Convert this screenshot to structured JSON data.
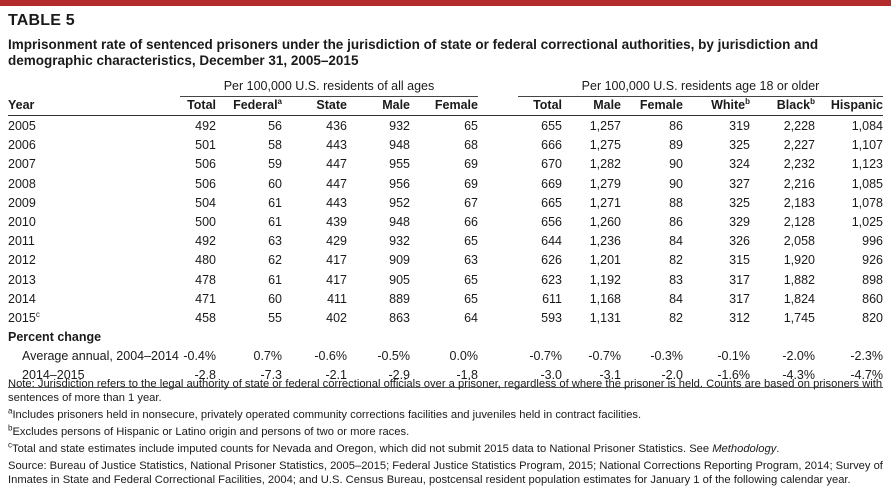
{
  "table_label": "TABLE 5",
  "title": "Imprisonment rate of sentenced prisoners under the jurisdiction of state or federal correctional authorities, by jurisdiction and demographic characteristics, December 31, 2005–2015",
  "group_headers": {
    "all_ages": "Per 100,000 U.S. residents of all ages",
    "adult": "Per 100,000 U.S. residents age 18 or older"
  },
  "columns": {
    "year": "Year",
    "total": "Total",
    "federal": "Federal",
    "federal_sup": "a",
    "state": "State",
    "male": "Male",
    "female": "Female",
    "adult_total": "Total",
    "adult_male": "Male",
    "adult_female": "Female",
    "white": "White",
    "white_sup": "b",
    "black": "Black",
    "black_sup": "b",
    "hispanic": "Hispanic"
  },
  "rows": [
    {
      "year": "2005",
      "sup": "",
      "total": "492",
      "federal": "56",
      "state": "436",
      "male": "932",
      "female": "65",
      "a_total": "655",
      "a_male": "1,257",
      "a_female": "86",
      "white": "319",
      "black": "2,228",
      "hispanic": "1,084"
    },
    {
      "year": "2006",
      "sup": "",
      "total": "501",
      "federal": "58",
      "state": "443",
      "male": "948",
      "female": "68",
      "a_total": "666",
      "a_male": "1,275",
      "a_female": "89",
      "white": "325",
      "black": "2,227",
      "hispanic": "1,107"
    },
    {
      "year": "2007",
      "sup": "",
      "total": "506",
      "federal": "59",
      "state": "447",
      "male": "955",
      "female": "69",
      "a_total": "670",
      "a_male": "1,282",
      "a_female": "90",
      "white": "324",
      "black": "2,232",
      "hispanic": "1,123"
    },
    {
      "year": "2008",
      "sup": "",
      "total": "506",
      "federal": "60",
      "state": "447",
      "male": "956",
      "female": "69",
      "a_total": "669",
      "a_male": "1,279",
      "a_female": "90",
      "white": "327",
      "black": "2,216",
      "hispanic": "1,085"
    },
    {
      "year": "2009",
      "sup": "",
      "total": "504",
      "federal": "61",
      "state": "443",
      "male": "952",
      "female": "67",
      "a_total": "665",
      "a_male": "1,271",
      "a_female": "88",
      "white": "325",
      "black": "2,183",
      "hispanic": "1,078"
    },
    {
      "year": "2010",
      "sup": "",
      "total": "500",
      "federal": "61",
      "state": "439",
      "male": "948",
      "female": "66",
      "a_total": "656",
      "a_male": "1,260",
      "a_female": "86",
      "white": "329",
      "black": "2,128",
      "hispanic": "1,025"
    },
    {
      "year": "2011",
      "sup": "",
      "total": "492",
      "federal": "63",
      "state": "429",
      "male": "932",
      "female": "65",
      "a_total": "644",
      "a_male": "1,236",
      "a_female": "84",
      "white": "326",
      "black": "2,058",
      "hispanic": "996"
    },
    {
      "year": "2012",
      "sup": "",
      "total": "480",
      "federal": "62",
      "state": "417",
      "male": "909",
      "female": "63",
      "a_total": "626",
      "a_male": "1,201",
      "a_female": "82",
      "white": "315",
      "black": "1,920",
      "hispanic": "926"
    },
    {
      "year": "2013",
      "sup": "",
      "total": "478",
      "federal": "61",
      "state": "417",
      "male": "905",
      "female": "65",
      "a_total": "623",
      "a_male": "1,192",
      "a_female": "83",
      "white": "317",
      "black": "1,882",
      "hispanic": "898"
    },
    {
      "year": "2014",
      "sup": "",
      "total": "471",
      "federal": "60",
      "state": "411",
      "male": "889",
      "female": "65",
      "a_total": "611",
      "a_male": "1,168",
      "a_female": "84",
      "white": "317",
      "black": "1,824",
      "hispanic": "860"
    },
    {
      "year": "2015",
      "sup": "c",
      "total": "458",
      "federal": "55",
      "state": "402",
      "male": "863",
      "female": "64",
      "a_total": "593",
      "a_male": "1,131",
      "a_female": "82",
      "white": "312",
      "black": "1,745",
      "hispanic": "820"
    }
  ],
  "percent_change": {
    "label": "Percent change",
    "rows": [
      {
        "label": "Average annual, 2004–2014",
        "total": "-0.4%",
        "federal": "0.7%",
        "state": "-0.6%",
        "male": "-0.5%",
        "female": "0.0%",
        "a_total": "-0.7%",
        "a_male": "-0.7%",
        "a_female": "-0.3%",
        "white": "-0.1%",
        "black": "-2.0%",
        "hispanic": "-2.3%"
      },
      {
        "label": "2014–2015",
        "total": "-2.8",
        "federal": "-7.3",
        "state": "-2.1",
        "male": "-2.9",
        "female": "-1.8",
        "a_total": "-3.0",
        "a_male": "-3.1",
        "a_female": "-2.0",
        "white": "-1.6%",
        "black": "-4.3%",
        "hispanic": "-4.7%"
      }
    ]
  },
  "notes": {
    "note": "Note: Jurisdiction refers to the legal authority of state or federal correctional officials over a prisoner, regardless of where the prisoner is held. Counts are based on prisoners with sentences of more than 1 year.",
    "a_mark": "a",
    "a": "Includes prisoners held in nonsecure, privately operated community corrections facilities and juveniles held in contract facilities.",
    "b_mark": "b",
    "b": "Excludes persons of Hispanic or Latino origin and persons of two or more races.",
    "c_mark": "c",
    "c_text": "Total and state estimates include imputed counts for Nevada and Oregon, which did not submit 2015 data to National Prisoner Statistics. See ",
    "c_italic": "Methodology",
    "c_end": ".",
    "source": "Source: Bureau of Justice Statistics, National Prisoner Statistics, 2005–2015; Federal Justice Statistics Program, 2015; National Corrections Reporting Program, 2014; Survey of Inmates in State and Federal Correctional Facilities, 2004; and U.S. Census Bureau, postcensal resident population estimates for January 1 of the following calendar year."
  },
  "colors": {
    "accent_bar": "#b42b2b"
  }
}
